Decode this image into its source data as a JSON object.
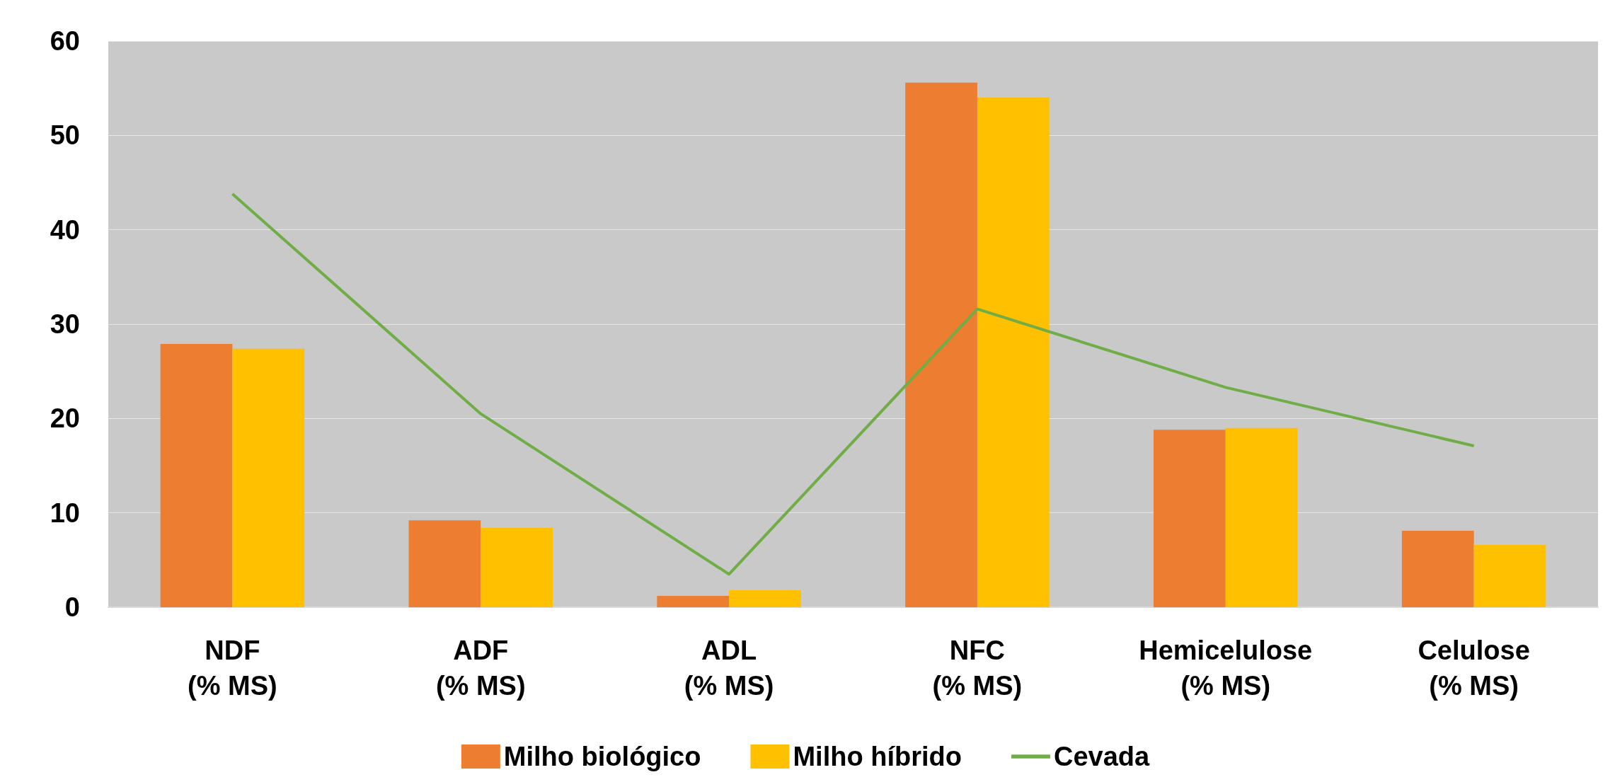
{
  "chart_data": {
    "type": "bar",
    "categories": [
      "NDF\n(% MS)",
      "ADF\n(% MS)",
      "ADL\n(% MS)",
      "NFC\n(% MS)",
      "Hemicelulose\n(% MS)",
      "Celulose\n(% MS)"
    ],
    "series": [
      {
        "name": "Milho biológico",
        "color": "#ed7d31",
        "values": [
          27.9,
          9.2,
          1.2,
          55.6,
          18.8,
          8.1
        ]
      },
      {
        "name": "Milho híbrido",
        "color": "#ffc000",
        "values": [
          27.4,
          8.4,
          1.8,
          54.0,
          19.0,
          6.6
        ]
      },
      {
        "name": "Cevada",
        "type": "line",
        "color": "#70ad47",
        "values": [
          43.8,
          20.5,
          3.5,
          31.6,
          23.3,
          17.1
        ]
      }
    ],
    "ylim": [
      0,
      60
    ],
    "yticks": [
      0,
      10,
      20,
      30,
      40,
      50,
      60
    ],
    "grid": "y",
    "legend": "bottom",
    "marker": "none"
  }
}
